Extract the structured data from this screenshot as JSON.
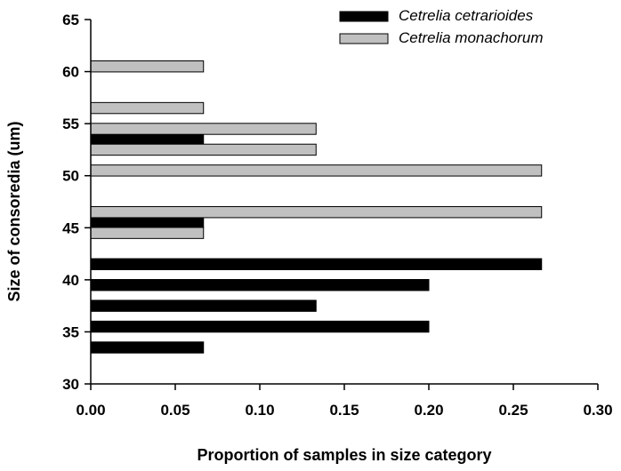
{
  "chart_data": {
    "type": "bar",
    "orientation": "horizontal",
    "title": "",
    "xlabel": "Proportion of samples in size category",
    "ylabel": "Size of consoredia (um)",
    "xlim": [
      0,
      0.3
    ],
    "ylim": [
      30,
      65
    ],
    "x_ticks": [
      "0.00",
      "0.05",
      "0.10",
      "0.15",
      "0.20",
      "0.25",
      "0.30"
    ],
    "y_ticks": [
      "30",
      "35",
      "40",
      "45",
      "50",
      "55",
      "60",
      "65"
    ],
    "grid": false,
    "legend_position": "top-right",
    "series": [
      {
        "name": "Cetrelia cetrarioides",
        "color": "#000000",
        "points": [
          {
            "y": 33.5,
            "x": 0.0667
          },
          {
            "y": 35.5,
            "x": 0.2
          },
          {
            "y": 37.5,
            "x": 0.1333
          },
          {
            "y": 39.5,
            "x": 0.2
          },
          {
            "y": 41.5,
            "x": 0.2667
          },
          {
            "y": 45.5,
            "x": 0.0667
          },
          {
            "y": 53.5,
            "x": 0.0667
          }
        ]
      },
      {
        "name": "Cetrelia monachorum",
        "color": "#c0c0c0",
        "points": [
          {
            "y": 44.5,
            "x": 0.0667
          },
          {
            "y": 46.5,
            "x": 0.2667
          },
          {
            "y": 50.5,
            "x": 0.2667
          },
          {
            "y": 52.5,
            "x": 0.1333
          },
          {
            "y": 54.5,
            "x": 0.1333
          },
          {
            "y": 56.5,
            "x": 0.0667
          },
          {
            "y": 60.5,
            "x": 0.0667
          }
        ]
      }
    ]
  }
}
